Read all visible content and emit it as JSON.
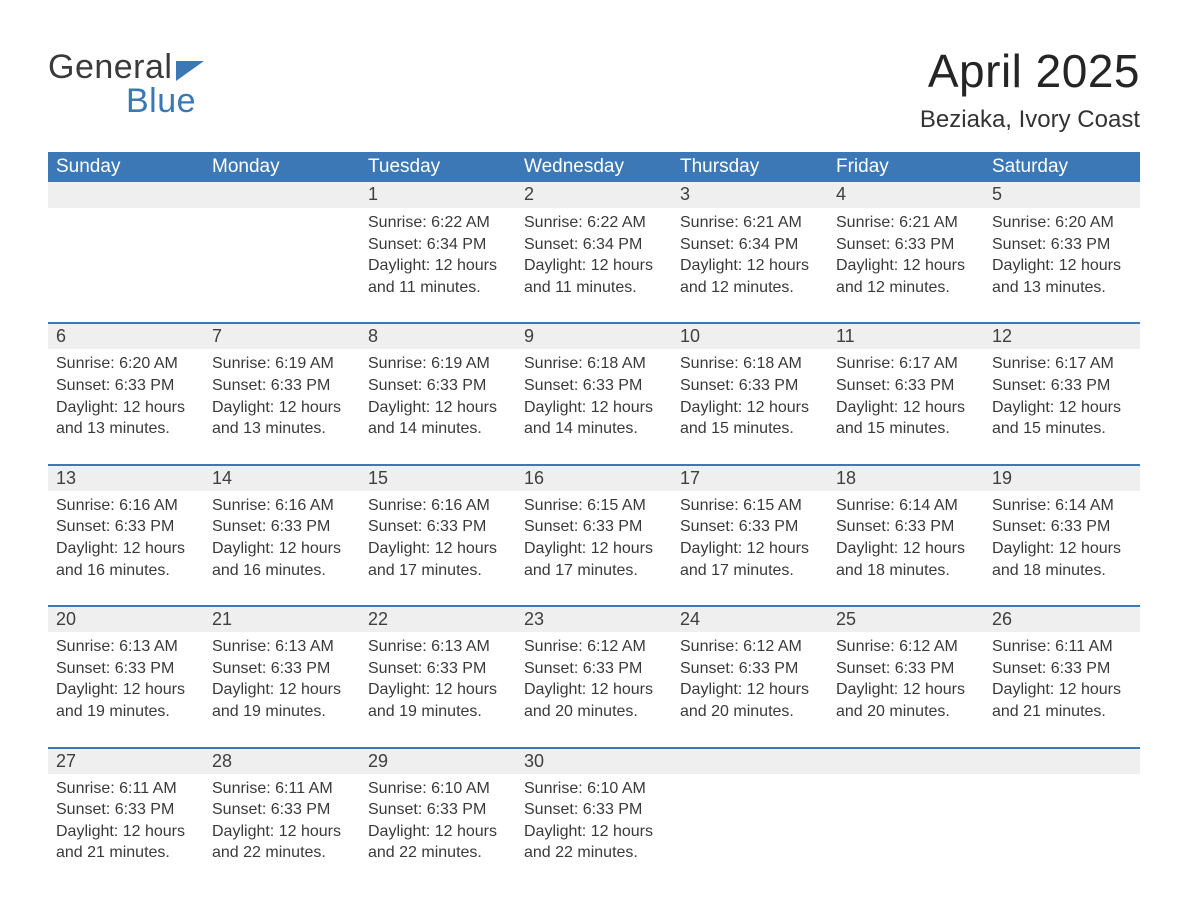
{
  "logo": {
    "text1": "General",
    "text2": "Blue"
  },
  "title": "April 2025",
  "location": "Beziaka, Ivory Coast",
  "colors": {
    "header_bg": "#3b78b5",
    "header_text": "#ffffff",
    "daynum_bg": "#efefef",
    "row_border": "#3b78b5",
    "body_text": "#3a3a3a",
    "page_bg": "#ffffff"
  },
  "typography": {
    "title_fontsize": 46,
    "location_fontsize": 24,
    "header_fontsize": 19,
    "daynum_fontsize": 18,
    "body_fontsize": 16
  },
  "weekdays": [
    "Sunday",
    "Monday",
    "Tuesday",
    "Wednesday",
    "Thursday",
    "Friday",
    "Saturday"
  ],
  "labels": {
    "sunrise": "Sunrise: ",
    "sunset": "Sunset: ",
    "daylight": "Daylight: "
  },
  "weeks": [
    [
      null,
      null,
      {
        "n": "1",
        "sr": "6:22 AM",
        "ss": "6:34 PM",
        "dl": "12 hours and 11 minutes."
      },
      {
        "n": "2",
        "sr": "6:22 AM",
        "ss": "6:34 PM",
        "dl": "12 hours and 11 minutes."
      },
      {
        "n": "3",
        "sr": "6:21 AM",
        "ss": "6:34 PM",
        "dl": "12 hours and 12 minutes."
      },
      {
        "n": "4",
        "sr": "6:21 AM",
        "ss": "6:33 PM",
        "dl": "12 hours and 12 minutes."
      },
      {
        "n": "5",
        "sr": "6:20 AM",
        "ss": "6:33 PM",
        "dl": "12 hours and 13 minutes."
      }
    ],
    [
      {
        "n": "6",
        "sr": "6:20 AM",
        "ss": "6:33 PM",
        "dl": "12 hours and 13 minutes."
      },
      {
        "n": "7",
        "sr": "6:19 AM",
        "ss": "6:33 PM",
        "dl": "12 hours and 13 minutes."
      },
      {
        "n": "8",
        "sr": "6:19 AM",
        "ss": "6:33 PM",
        "dl": "12 hours and 14 minutes."
      },
      {
        "n": "9",
        "sr": "6:18 AM",
        "ss": "6:33 PM",
        "dl": "12 hours and 14 minutes."
      },
      {
        "n": "10",
        "sr": "6:18 AM",
        "ss": "6:33 PM",
        "dl": "12 hours and 15 minutes."
      },
      {
        "n": "11",
        "sr": "6:17 AM",
        "ss": "6:33 PM",
        "dl": "12 hours and 15 minutes."
      },
      {
        "n": "12",
        "sr": "6:17 AM",
        "ss": "6:33 PM",
        "dl": "12 hours and 15 minutes."
      }
    ],
    [
      {
        "n": "13",
        "sr": "6:16 AM",
        "ss": "6:33 PM",
        "dl": "12 hours and 16 minutes."
      },
      {
        "n": "14",
        "sr": "6:16 AM",
        "ss": "6:33 PM",
        "dl": "12 hours and 16 minutes."
      },
      {
        "n": "15",
        "sr": "6:16 AM",
        "ss": "6:33 PM",
        "dl": "12 hours and 17 minutes."
      },
      {
        "n": "16",
        "sr": "6:15 AM",
        "ss": "6:33 PM",
        "dl": "12 hours and 17 minutes."
      },
      {
        "n": "17",
        "sr": "6:15 AM",
        "ss": "6:33 PM",
        "dl": "12 hours and 17 minutes."
      },
      {
        "n": "18",
        "sr": "6:14 AM",
        "ss": "6:33 PM",
        "dl": "12 hours and 18 minutes."
      },
      {
        "n": "19",
        "sr": "6:14 AM",
        "ss": "6:33 PM",
        "dl": "12 hours and 18 minutes."
      }
    ],
    [
      {
        "n": "20",
        "sr": "6:13 AM",
        "ss": "6:33 PM",
        "dl": "12 hours and 19 minutes."
      },
      {
        "n": "21",
        "sr": "6:13 AM",
        "ss": "6:33 PM",
        "dl": "12 hours and 19 minutes."
      },
      {
        "n": "22",
        "sr": "6:13 AM",
        "ss": "6:33 PM",
        "dl": "12 hours and 19 minutes."
      },
      {
        "n": "23",
        "sr": "6:12 AM",
        "ss": "6:33 PM",
        "dl": "12 hours and 20 minutes."
      },
      {
        "n": "24",
        "sr": "6:12 AM",
        "ss": "6:33 PM",
        "dl": "12 hours and 20 minutes."
      },
      {
        "n": "25",
        "sr": "6:12 AM",
        "ss": "6:33 PM",
        "dl": "12 hours and 20 minutes."
      },
      {
        "n": "26",
        "sr": "6:11 AM",
        "ss": "6:33 PM",
        "dl": "12 hours and 21 minutes."
      }
    ],
    [
      {
        "n": "27",
        "sr": "6:11 AM",
        "ss": "6:33 PM",
        "dl": "12 hours and 21 minutes."
      },
      {
        "n": "28",
        "sr": "6:11 AM",
        "ss": "6:33 PM",
        "dl": "12 hours and 22 minutes."
      },
      {
        "n": "29",
        "sr": "6:10 AM",
        "ss": "6:33 PM",
        "dl": "12 hours and 22 minutes."
      },
      {
        "n": "30",
        "sr": "6:10 AM",
        "ss": "6:33 PM",
        "dl": "12 hours and 22 minutes."
      },
      null,
      null,
      null
    ]
  ]
}
